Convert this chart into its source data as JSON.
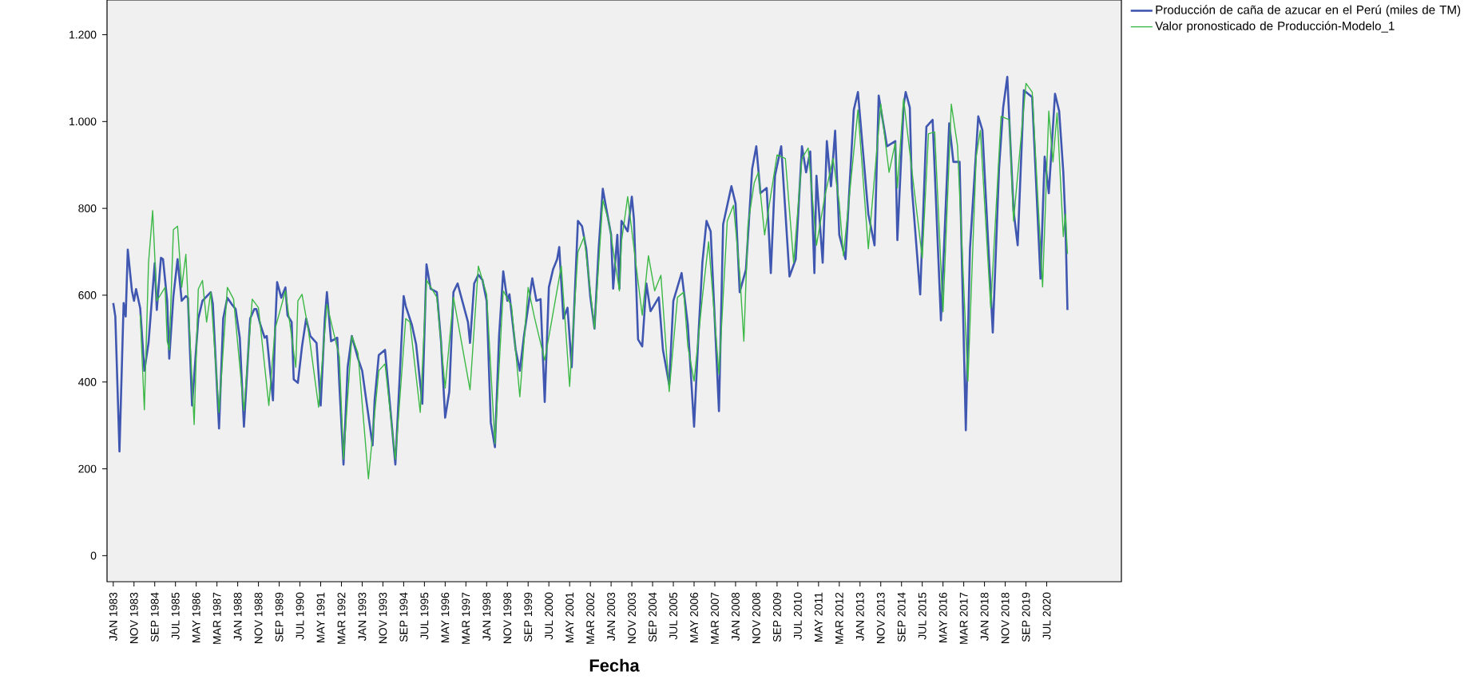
{
  "chart_data": {
    "type": "line",
    "xlabel": "Fecha",
    "xlim": [
      "1982-10",
      "2023-07"
    ],
    "ylim": [
      -60,
      1280
    ],
    "yticks": [
      0,
      200,
      400,
      600,
      800,
      {
        "value": 1000,
        "label": "1.000"
      },
      {
        "value": 1200,
        "label": "1.200"
      }
    ],
    "xticks": [
      {
        "value": "1983-01",
        "label": "JAN 1983"
      },
      {
        "value": "1983-11",
        "label": "NOV 1983"
      },
      {
        "value": "1984-09",
        "label": "SEP 1984"
      },
      {
        "value": "1985-07",
        "label": "JUL 1985"
      },
      {
        "value": "1986-05",
        "label": "MAY 1986"
      },
      {
        "value": "1987-03",
        "label": "MAR 1987"
      },
      {
        "value": "1988-01",
        "label": "JAN 1988"
      },
      {
        "value": "1988-11",
        "label": "NOV 1988"
      },
      {
        "value": "1989-09",
        "label": "SEP 1989"
      },
      {
        "value": "1990-07",
        "label": "JUL 1990"
      },
      {
        "value": "1991-05",
        "label": "MAY 1991"
      },
      {
        "value": "1992-03",
        "label": "MAR 1992"
      },
      {
        "value": "1993-01",
        "label": "JAN 1993"
      },
      {
        "value": "1993-11",
        "label": "NOV 1993"
      },
      {
        "value": "1994-09",
        "label": "SEP 1994"
      },
      {
        "value": "1995-07",
        "label": "JUL 1995"
      },
      {
        "value": "1996-05",
        "label": "MAY 1996"
      },
      {
        "value": "1997-03",
        "label": "MAR 1997"
      },
      {
        "value": "1998-01",
        "label": "JAN 1998"
      },
      {
        "value": "1998-11",
        "label": "NOV 1998"
      },
      {
        "value": "1999-09",
        "label": "SEP 1999"
      },
      {
        "value": "2000-07",
        "label": "JUL 2000"
      },
      {
        "value": "2001-05",
        "label": "MAY 2001"
      },
      {
        "value": "2002-03",
        "label": "MAR 2002"
      },
      {
        "value": "2003-01",
        "label": "JAN 2003"
      },
      {
        "value": "2003-11",
        "label": "NOV 2003"
      },
      {
        "value": "2004-09",
        "label": "SEP 2004"
      },
      {
        "value": "2005-07",
        "label": "JUL 2005"
      },
      {
        "value": "2006-05",
        "label": "MAY 2006"
      },
      {
        "value": "2007-03",
        "label": "MAR 2007"
      },
      {
        "value": "2008-01",
        "label": "JAN 2008"
      },
      {
        "value": "2008-11",
        "label": "NOV 2008"
      },
      {
        "value": "2009-09",
        "label": "SEP 2009"
      },
      {
        "value": "2010-07",
        "label": "JUL 2010"
      },
      {
        "value": "2011-05",
        "label": "MAY 2011"
      },
      {
        "value": "2012-03",
        "label": "MAR 2012"
      },
      {
        "value": "2013-01",
        "label": "JAN 2013"
      },
      {
        "value": "2013-11",
        "label": "NOV 2013"
      },
      {
        "value": "2014-09",
        "label": "SEP 2014"
      },
      {
        "value": "2015-07",
        "label": "JUL 2015"
      },
      {
        "value": "2016-05",
        "label": "MAY 2016"
      },
      {
        "value": "2017-03",
        "label": "MAR 2017"
      },
      {
        "value": "2018-01",
        "label": "JAN 2018"
      },
      {
        "value": "2018-11",
        "label": "NOV 2018"
      },
      {
        "value": "2019-09",
        "label": "SEP 2019"
      },
      {
        "value": "2020-07",
        "label": "JUL 2020"
      }
    ],
    "legend": "top right",
    "marker": "none",
    "line_style": "solid",
    "series": [
      {
        "name": "Producción de caña de azucar en el Perú (miles de TM)",
        "color": "#3f57b0",
        "x": [
          "1983-01",
          "1983-02",
          "1983-04",
          "1983-06",
          "1983-07",
          "1983-08",
          "1983-10",
          "1983-11",
          "1983-12",
          "1984-02",
          "1984-04",
          "1984-06",
          "1984-09",
          "1984-10",
          "1984-12",
          "1985-01",
          "1985-03",
          "1985-04",
          "1985-06",
          "1985-08",
          "1985-10",
          "1985-12",
          "1986-01",
          "1986-03",
          "1986-06",
          "1986-08",
          "1986-12",
          "1987-01",
          "1987-04",
          "1987-06",
          "1987-08",
          "1987-10",
          "1987-12",
          "1988-02",
          "1988-04",
          "1988-07",
          "1988-09",
          "1988-10",
          "1988-12",
          "1989-02",
          "1989-03",
          "1989-06",
          "1989-07",
          "1989-08",
          "1989-10",
          "1989-12",
          "1990-01",
          "1990-03",
          "1990-04",
          "1990-06",
          "1990-08",
          "1990-10",
          "1990-12",
          "1991-03",
          "1991-05",
          "1991-07",
          "1991-08",
          "1991-10",
          "1992-01",
          "1992-02",
          "1992-04",
          "1992-06",
          "1992-08",
          "1992-11",
          "1993-01",
          "1993-06",
          "1993-07",
          "1993-09",
          "1993-12",
          "1994-05",
          "1994-09",
          "1994-10",
          "1995-01",
          "1995-03",
          "1995-06",
          "1995-08",
          "1995-10",
          "1996-01",
          "1996-03",
          "1996-05",
          "1996-07",
          "1996-09",
          "1996-11",
          "1997-04",
          "1997-05",
          "1997-07",
          "1997-09",
          "1997-11",
          "1998-01",
          "1998-03",
          "1998-05",
          "1998-07",
          "1998-09",
          "1998-11",
          "1998-12",
          "1999-03",
          "1999-05",
          "1999-07",
          "1999-11",
          "2000-01",
          "2000-03",
          "2000-05",
          "2000-07",
          "2000-09",
          "2000-11",
          "2000-12",
          "2001-02",
          "2001-04",
          "2001-06",
          "2001-07",
          "2001-09",
          "2001-11",
          "2002-01",
          "2002-03",
          "2002-05",
          "2002-07",
          "2002-09",
          "2002-11",
          "2003-01",
          "2003-02",
          "2003-04",
          "2003-05",
          "2003-06",
          "2003-09",
          "2003-11",
          "2003-12",
          "2004-02",
          "2004-04",
          "2004-06",
          "2004-08",
          "2004-12",
          "2005-02",
          "2005-05",
          "2005-07",
          "2005-11",
          "2006-02",
          "2006-05",
          "2006-07",
          "2006-09",
          "2006-11",
          "2007-01",
          "2007-05",
          "2007-07",
          "2007-11",
          "2008-01",
          "2008-03",
          "2008-06",
          "2008-09",
          "2008-11",
          "2009-01",
          "2009-04",
          "2009-06",
          "2009-08",
          "2009-11",
          "2010-03",
          "2010-06",
          "2010-09",
          "2010-11",
          "2011-01",
          "2011-03",
          "2011-04",
          "2011-07",
          "2011-09",
          "2011-11",
          "2012-01",
          "2012-03",
          "2012-06",
          "2012-10",
          "2012-12",
          "2013-05",
          "2013-08",
          "2013-10",
          "2014-02",
          "2014-06",
          "2014-07",
          "2014-10",
          "2014-11",
          "2015-01",
          "2015-02",
          "2015-06",
          "2015-09",
          "2015-12",
          "2016-04",
          "2016-08",
          "2016-10",
          "2017-01",
          "2017-04",
          "2017-06",
          "2017-10",
          "2017-12",
          "2018-05",
          "2018-08",
          "2018-10",
          "2018-12",
          "2019-03",
          "2019-05",
          "2019-08",
          "2019-12",
          "2020-04",
          "2020-06",
          "2020-08",
          "2020-11",
          "2021-01",
          "2021-03",
          "2021-04",
          "2021-05"
        ],
        "values": [
          582,
          551,
          240,
          582,
          551,
          705,
          610,
          587,
          614,
          570,
          426,
          490,
          674,
          566,
          686,
          683,
          587,
          454,
          598,
          683,
          587,
          598,
          594,
          346,
          546,
          587,
          607,
          580,
          293,
          546,
          594,
          580,
          568,
          502,
          297,
          546,
          568,
          568,
          531,
          502,
          506,
          358,
          518,
          630,
          594,
          618,
          554,
          538,
          406,
          398,
          482,
          546,
          506,
          490,
          346,
          546,
          607,
          494,
          502,
          394,
          210,
          434,
          506,
          454,
          426,
          254,
          358,
          462,
          474,
          210,
          598,
          575,
          531,
          487,
          350,
          671,
          615,
          607,
          494,
          318,
          378,
          607,
          627,
          538,
          490,
          627,
          647,
          635,
          587,
          306,
          250,
          506,
          655,
          587,
          602,
          474,
          426,
          506,
          639,
          587,
          591,
          354,
          618,
          659,
          683,
          711,
          546,
          571,
          434,
          546,
          771,
          759,
          707,
          595,
          523,
          707,
          845,
          791,
          739,
          615,
          739,
          615,
          771,
          747,
          827,
          775,
          498,
          482,
          627,
          563,
          595,
          474,
          394,
          587,
          651,
          531,
          297,
          498,
          675,
          771,
          747,
          333,
          763,
          851,
          811,
          607,
          659,
          891,
          943,
          835,
          847,
          651,
          875,
          943,
          643,
          683,
          943,
          883,
          931,
          651,
          875,
          675,
          955,
          851,
          979,
          739,
          683,
          1027,
          1068,
          787,
          715,
          1060,
          943,
          955,
          727,
          1036,
          1068,
          1032,
          847,
          602,
          988,
          1004,
          542,
          996,
          907,
          907,
          289,
          707,
          1012,
          980,
          514,
          891,
          1032,
          1103,
          795,
          715,
          1072,
          1056,
          638,
          919,
          835,
          1064,
          1024,
          883,
          771,
          566
        ]
      },
      {
        "name": "Valor pronosticado de Producción-Modelo_1",
        "color": "#3cb846",
        "x": [
          "1984-02",
          "1984-04",
          "1984-06",
          "1984-08",
          "1984-10",
          "1985-02",
          "1985-03",
          "1985-04",
          "1985-06",
          "1985-08",
          "1985-10",
          "1985-12",
          "1986-04",
          "1986-06",
          "1986-08",
          "1986-10",
          "1986-12",
          "1987-04",
          "1987-08",
          "1987-11",
          "1988-04",
          "1988-08",
          "1988-11",
          "1989-04",
          "1989-07",
          "1989-12",
          "1990-05",
          "1990-06",
          "1990-08",
          "1990-11",
          "1991-04",
          "1991-08",
          "1992-02",
          "1992-04",
          "1992-08",
          "1992-11",
          "1993-04",
          "1993-09",
          "1993-12",
          "1994-05",
          "1994-10",
          "1994-12",
          "1995-05",
          "1995-08",
          "1996-01",
          "1996-05",
          "1996-09",
          "1997-05",
          "1997-09",
          "1998-01",
          "1998-05",
          "1998-09",
          "1999-01",
          "1999-05",
          "1999-09",
          "1999-12",
          "2000-05",
          "2001-01",
          "2001-05",
          "2001-09",
          "2001-12",
          "2002-05",
          "2002-09",
          "2002-12",
          "2003-05",
          "2003-06",
          "2003-09",
          "2003-10",
          "2004-04",
          "2004-07",
          "2004-10",
          "2005-01",
          "2005-05",
          "2005-09",
          "2005-12",
          "2006-02",
          "2006-05",
          "2006-09",
          "2006-12",
          "2007-05",
          "2007-09",
          "2007-12",
          "2008-03",
          "2008-05",
          "2008-07",
          "2008-10",
          "2008-12",
          "2009-03",
          "2009-09",
          "2010-01",
          "2010-05",
          "2010-09",
          "2010-12",
          "2011-04",
          "2011-08",
          "2011-12",
          "2012-03",
          "2012-05",
          "2012-10",
          "2012-12",
          "2013-05",
          "2013-11",
          "2014-03",
          "2014-06",
          "2014-07",
          "2014-10",
          "2015-03",
          "2015-07",
          "2015-10",
          "2016-01",
          "2016-05",
          "2016-09",
          "2016-12",
          "2017-05",
          "2017-09",
          "2017-11",
          "2018-04",
          "2018-09",
          "2019-01",
          "2019-03",
          "2019-09",
          "2019-12",
          "2020-05",
          "2020-08",
          "2020-10",
          "2020-12",
          "2021-03",
          "2021-04",
          "2021-05"
        ],
        "values": [
          555,
          336,
          674,
          795,
          587,
          618,
          494,
          474,
          751,
          759,
          618,
          694,
          302,
          614,
          634,
          538,
          607,
          330,
          618,
          591,
          334,
          591,
          571,
          346,
          522,
          610,
          434,
          587,
          602,
          522,
          342,
          579,
          458,
          222,
          506,
          466,
          177,
          426,
          442,
          222,
          546,
          538,
          330,
          635,
          595,
          386,
          595,
          382,
          667,
          602,
          258,
          610,
          575,
          366,
          618,
          550,
          450,
          667,
          390,
          699,
          735,
          523,
          819,
          767,
          610,
          723,
          827,
          787,
          554,
          691,
          610,
          646,
          378,
          595,
          607,
          482,
          402,
          595,
          723,
          418,
          771,
          807,
          651,
          494,
          763,
          859,
          883,
          739,
          923,
          915,
          675,
          915,
          939,
          715,
          827,
          915,
          811,
          691,
          931,
          1027,
          707,
          1040,
          883,
          951,
          847,
          1052,
          847,
          686,
          972,
          976,
          562,
          1040,
          944,
          402,
          919,
          980,
          571,
          1012,
          1004,
          771,
          1088,
          1068,
          619,
          1024,
          907,
          1020,
          735,
          787,
          695
        ]
      }
    ]
  }
}
